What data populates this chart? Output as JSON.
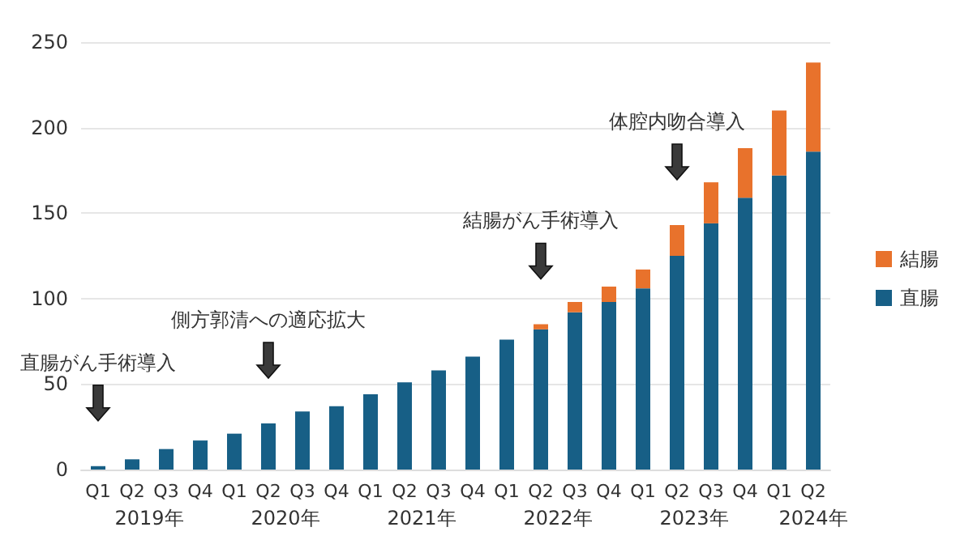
{
  "chart_data": {
    "type": "bar",
    "stacked": true,
    "categories": [
      "Q1",
      "Q2",
      "Q3",
      "Q4",
      "Q1",
      "Q2",
      "Q3",
      "Q4",
      "Q1",
      "Q2",
      "Q3",
      "Q4",
      "Q1",
      "Q2",
      "Q3",
      "Q4",
      "Q1",
      "Q2",
      "Q3",
      "Q4",
      "Q1",
      "Q2"
    ],
    "series": [
      {
        "name": "直腸",
        "color": "#175f86",
        "values": [
          2,
          6,
          12,
          17,
          21,
          27,
          34,
          37,
          44,
          51,
          58,
          66,
          76,
          82,
          92,
          98,
          106,
          125,
          144,
          159,
          172,
          186
        ]
      },
      {
        "name": "結腸",
        "color": "#e8722c",
        "values": [
          null,
          null,
          null,
          null,
          null,
          null,
          null,
          null,
          null,
          null,
          null,
          null,
          null,
          3,
          6,
          9,
          11,
          18,
          24,
          29,
          38,
          52
        ]
      }
    ],
    "ylim": [
      0,
      250
    ],
    "yticks": [
      0,
      50,
      100,
      150,
      200,
      250
    ],
    "grid": "y",
    "legend": "right",
    "annotations": [
      "2019年",
      "2020年",
      "2021年",
      "2022年",
      "2023年",
      "2024年",
      "直腸がん手術導入",
      "側方郭清への適応拡大",
      "結腸がん手術導入",
      "体腔内吻合導入"
    ]
  }
}
